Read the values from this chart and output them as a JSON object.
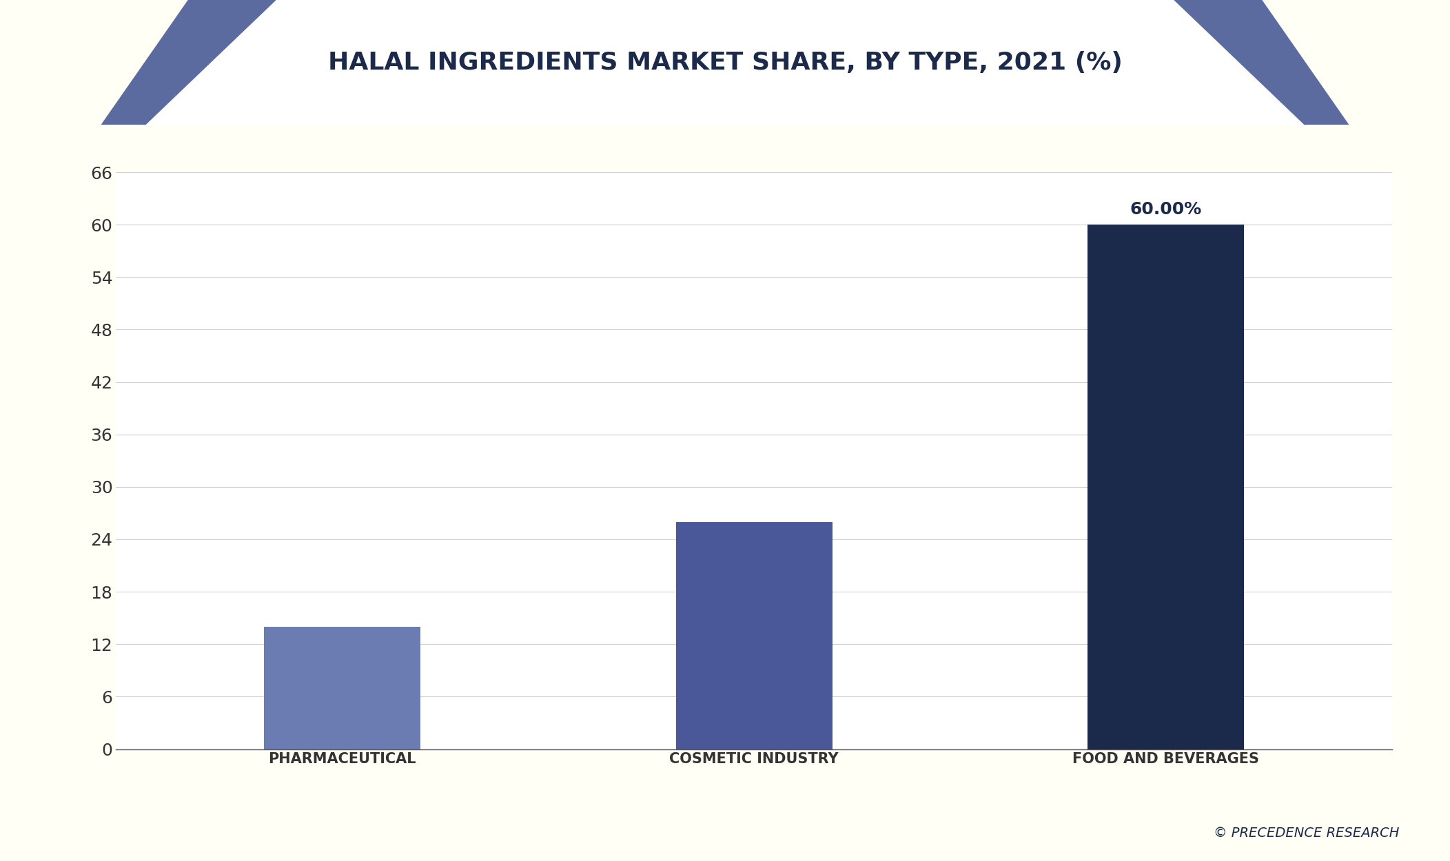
{
  "title": "HALAL INGREDIENTS MARKET SHARE, BY TYPE, 2021 (%)",
  "categories": [
    "PHARMACEUTICAL",
    "COSMETIC INDUSTRY",
    "FOOD AND BEVERAGES"
  ],
  "values": [
    14.0,
    26.0,
    60.0
  ],
  "bar_colors": [
    "#6B7CB3",
    "#4A5899",
    "#1B2A4A"
  ],
  "bar_label": [
    "",
    "",
    "60.00%"
  ],
  "ylim": [
    0,
    66
  ],
  "yticks": [
    0,
    6,
    12,
    18,
    24,
    30,
    36,
    42,
    48,
    54,
    60,
    66
  ],
  "background_color": "#ffffff",
  "outer_background": "#fffff5",
  "chart_area_bg": "#ffffff",
  "title_color": "#1B2A4A",
  "title_fontsize": 26,
  "tick_fontsize": 18,
  "label_fontsize": 15,
  "annotation_fontsize": 18,
  "grid_color": "#d0d0d0",
  "watermark": "© PRECEDENCE RESEARCH",
  "watermark_color": "#1B2A4A",
  "header_bg_color": "#1B2A4A",
  "header_white_area": "#ffffff",
  "header_triangle_color": "#5B6BA0",
  "border_color": "#1B2A4A",
  "separator_color": "#1B2A4A"
}
